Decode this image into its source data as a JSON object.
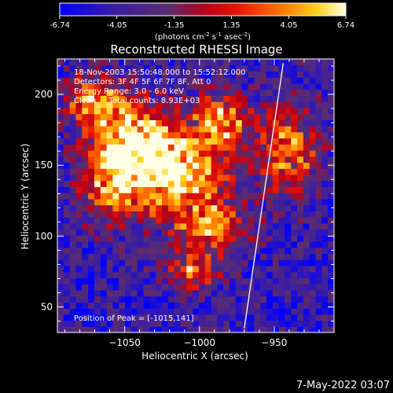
{
  "colorbar": {
    "ticks": [
      "-6.74",
      "-4.05",
      "-1.35",
      "1.35",
      "4.05",
      "6.74"
    ],
    "range": [
      -6.74,
      6.74
    ],
    "label_main": "(photons cm",
    "label_exp1": "-2",
    "label_mid": " s",
    "label_exp2": "-1",
    "label_end": " asec",
    "label_exp3": "-2",
    "label_close": ")"
  },
  "chart_data": {
    "type": "heatmap",
    "title": "Reconstructed RHESSI Image",
    "xlabel": "Heliocentric X (arcsec)",
    "ylabel": "Heliocentric Y (arcsec)",
    "xlim": [
      -1095,
      -910
    ],
    "ylim": [
      32,
      225
    ],
    "xticks": [
      -1050,
      -1000,
      -950
    ],
    "xtick_labels": [
      "−1050",
      "−1000",
      "−950"
    ],
    "yticks": [
      50,
      100,
      150,
      200
    ],
    "ytick_labels": [
      "50",
      "100",
      "150",
      "200"
    ],
    "annotations": [
      "18-Nov-2003 15:50:48.000 to 15:52:12.000",
      "Detectors: 3F 4F 5F 6F 7F 8F, Att 0",
      "Energy Range: 3.0 - 6.0 keV",
      "Clean     Total counts: 8.93E+03"
    ],
    "peak_label": "Position of Peak = [-1015,141]",
    "peak": {
      "x": -1015,
      "y": 141
    },
    "limb_line": [
      [
        -970,
        35
      ],
      [
        -944,
        222
      ]
    ],
    "grid": false,
    "grid_cells": [
      45,
      45
    ],
    "blobs": [
      {
        "x": -1015,
        "y": 141,
        "sx": 22,
        "sy": 20,
        "amp": 6.74
      },
      {
        "x": -1040,
        "y": 170,
        "sx": 18,
        "sy": 18,
        "amp": 5.0
      },
      {
        "x": -1060,
        "y": 140,
        "sx": 14,
        "sy": 20,
        "amp": 4.2
      },
      {
        "x": -990,
        "y": 105,
        "sx": 16,
        "sy": 12,
        "amp": 3.5
      },
      {
        "x": -985,
        "y": 180,
        "sx": 14,
        "sy": 14,
        "amp": 4.0
      },
      {
        "x": -940,
        "y": 160,
        "sx": 14,
        "sy": 22,
        "amp": 3.6
      },
      {
        "x": -1070,
        "y": 195,
        "sx": 14,
        "sy": 14,
        "amp": 3.4
      },
      {
        "x": -1005,
        "y": 75,
        "sx": 12,
        "sy": 10,
        "amp": 2.4
      }
    ],
    "background_level": -4.2,
    "noise_amplitude": 2.8
  },
  "footer": {
    "timestamp": "7-May-2022 03:07"
  }
}
